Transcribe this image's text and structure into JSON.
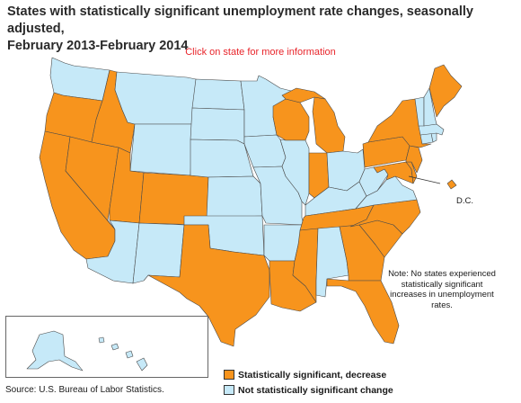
{
  "title": {
    "line1": "States with statistically significant unemployment rate changes, seasonally adjusted,",
    "line2": "February 2013-February 2014"
  },
  "instruction": "Click on state for more information",
  "note": "Note: No states experienced statistically significant increases in unemployment rates.",
  "dc_label": "D.C.",
  "legend": [
    {
      "label": "Statistically significant, decrease",
      "color": "#f7941d"
    },
    {
      "label": "Not statistically significant change",
      "color": "#c6e9f8"
    }
  ],
  "source": "Source:  U.S. Bureau of Labor Statistics.",
  "colors": {
    "decrease": "#f7941d",
    "no_change": "#c6e9f8",
    "border": "#4a4a4a"
  },
  "states": {
    "WA": "no_change",
    "OR": "decrease",
    "CA": "decrease",
    "ID": "decrease",
    "NV": "decrease",
    "MT": "no_change",
    "WY": "no_change",
    "UT": "decrease",
    "AZ": "no_change",
    "CO": "decrease",
    "NM": "no_change",
    "ND": "no_change",
    "SD": "no_change",
    "NE": "no_change",
    "KS": "no_change",
    "OK": "no_change",
    "TX": "decrease",
    "MN": "no_change",
    "IA": "no_change",
    "MO": "no_change",
    "AR": "no_change",
    "LA": "decrease",
    "WI": "decrease",
    "IL": "no_change",
    "MI": "decrease",
    "IN": "decrease",
    "OH": "no_change",
    "KY": "no_change",
    "TN": "decrease",
    "MS": "decrease",
    "AL": "no_change",
    "GA": "decrease",
    "FL": "decrease",
    "SC": "decrease",
    "NC": "decrease",
    "VA": "no_change",
    "WV": "no_change",
    "MD": "decrease",
    "DE": "decrease",
    "PA": "decrease",
    "NJ": "decrease",
    "NY": "decrease",
    "CT": "no_change",
    "RI": "no_change",
    "MA": "no_change",
    "VT": "no_change",
    "NH": "no_change",
    "ME": "decrease",
    "DC": "decrease",
    "AK": "no_change",
    "HI": "no_change"
  }
}
